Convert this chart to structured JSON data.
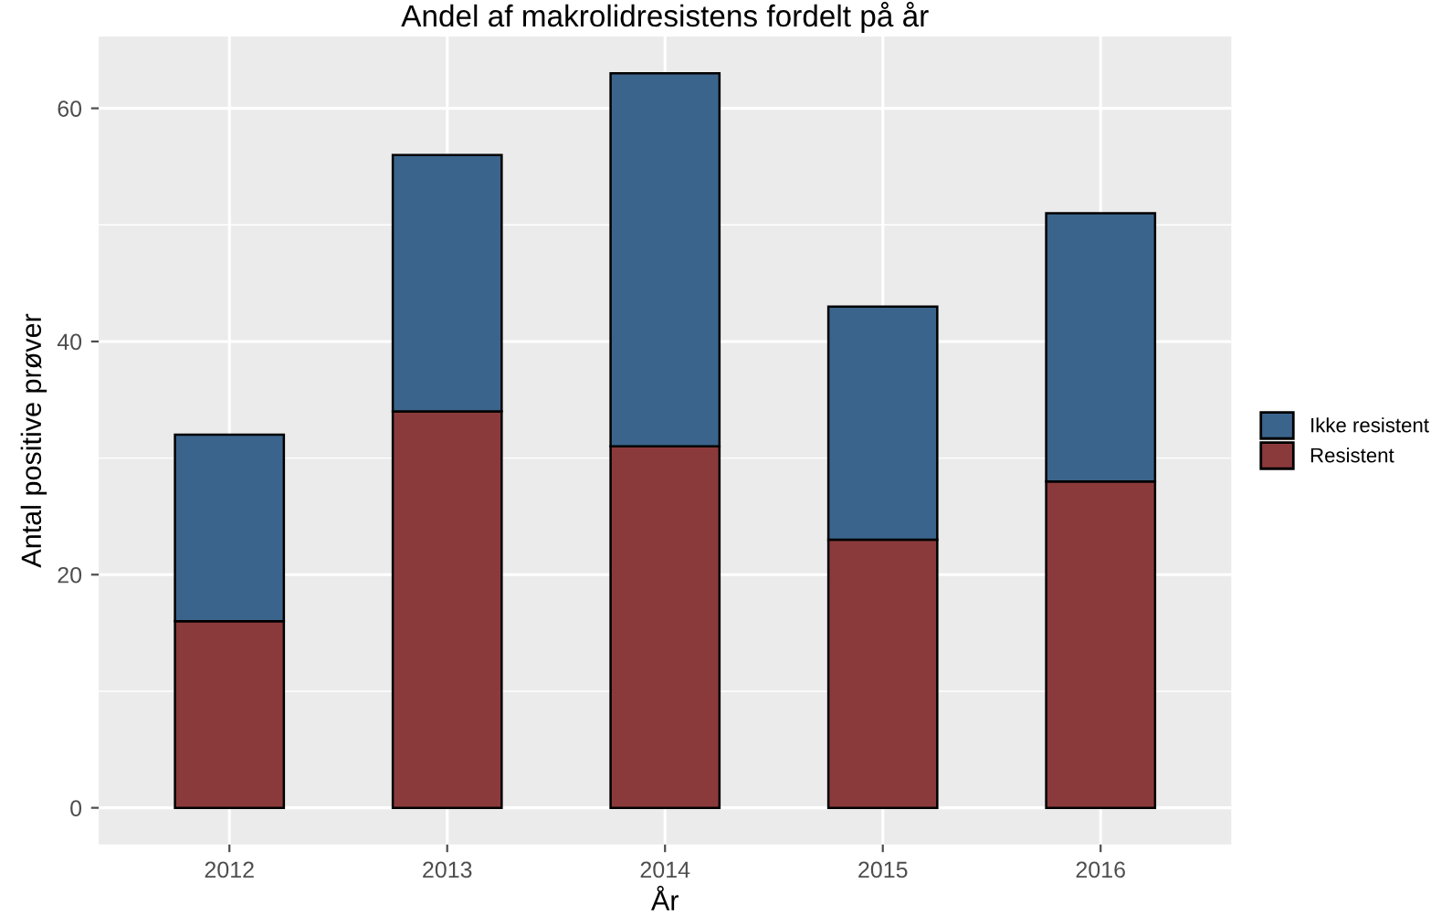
{
  "chart_data": {
    "type": "bar",
    "title": "Andel af makrolidresistens fordelt på år",
    "xlabel": "År",
    "ylabel": "Antal positive prøver",
    "categories": [
      "2012",
      "2013",
      "2014",
      "2015",
      "2016"
    ],
    "series": [
      {
        "name": "Resistent",
        "color": "#8b3a3c",
        "values": [
          16,
          34,
          31,
          23,
          28
        ]
      },
      {
        "name": "Ikke resistent",
        "color": "#3b648c",
        "values": [
          16,
          22,
          32,
          20,
          23
        ]
      }
    ],
    "stacked": true,
    "ylim": [
      -3.15,
      66.15
    ],
    "yticks": [
      0,
      20,
      40,
      60
    ],
    "grid": true,
    "legend": "right"
  }
}
